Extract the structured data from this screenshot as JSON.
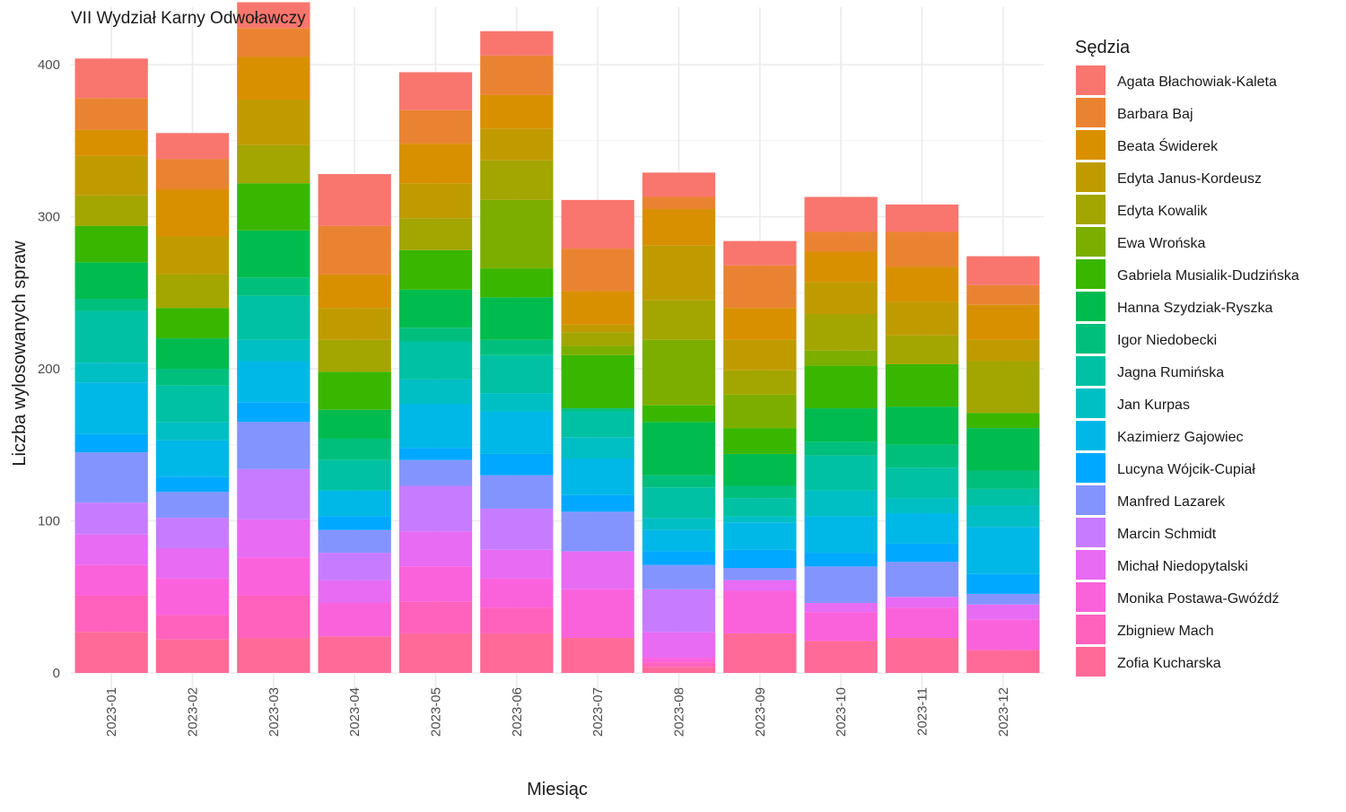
{
  "chart_data": {
    "type": "bar",
    "stacked": true,
    "title": "VII Wydział Karny Odwoławczy",
    "xlabel": "Miesiąc",
    "ylabel": "Liczba wylosowanych spraw",
    "ylim": [
      0,
      420
    ],
    "yticks": [
      0,
      100,
      200,
      300,
      400
    ],
    "grid": true,
    "legend_title": "Sędzia",
    "legend_position": "right",
    "categories": [
      "2023-01",
      "2023-02",
      "2023-03",
      "2023-04",
      "2023-05",
      "2023-06",
      "2023-07",
      "2023-08",
      "2023-09",
      "2023-10",
      "2023-11",
      "2023-12"
    ],
    "series": [
      {
        "name": "Agata Błachowiak-Kaleta",
        "color": "#F8766D",
        "values": [
          26,
          17,
          17,
          34,
          25,
          16,
          32,
          16,
          16,
          23,
          18,
          19
        ]
      },
      {
        "name": "Barbara Baj",
        "color": "#EA8331",
        "values": [
          21,
          20,
          19,
          32,
          22,
          26,
          28,
          8,
          28,
          13,
          23,
          13
        ]
      },
      {
        "name": "Beata Świderek",
        "color": "#D89000",
        "values": [
          17,
          31,
          28,
          22,
          26,
          22,
          22,
          24,
          21,
          20,
          23,
          23
        ]
      },
      {
        "name": "Edyta Janus-Kordeusz",
        "color": "#C09B00",
        "values": [
          26,
          25,
          30,
          21,
          23,
          21,
          5,
          36,
          20,
          21,
          22,
          14
        ]
      },
      {
        "name": "Edyta Kowalik",
        "color": "#A3A500",
        "values": [
          20,
          22,
          25,
          21,
          21,
          26,
          9,
          26,
          16,
          24,
          19,
          34
        ]
      },
      {
        "name": "Ewa Wrońska",
        "color": "#7CAE00",
        "values": [
          0,
          0,
          0,
          0,
          0,
          45,
          6,
          43,
          22,
          10,
          0,
          0
        ]
      },
      {
        "name": "Gabriela Musialik-Dudzińska",
        "color": "#39B600",
        "values": [
          24,
          20,
          31,
          25,
          26,
          19,
          35,
          11,
          17,
          28,
          28,
          10
        ]
      },
      {
        "name": "Hanna Szydziak-Ryszka",
        "color": "#00BB4E",
        "values": [
          24,
          20,
          31,
          19,
          25,
          28,
          0,
          35,
          21,
          22,
          25,
          28
        ]
      },
      {
        "name": "Igor Niedobecki",
        "color": "#00BF7D",
        "values": [
          8,
          11,
          12,
          14,
          9,
          10,
          2,
          8,
          8,
          9,
          15,
          12
        ]
      },
      {
        "name": "Jagna Rumińska",
        "color": "#00C1A3",
        "values": [
          34,
          24,
          29,
          20,
          25,
          25,
          17,
          20,
          12,
          23,
          20,
          11
        ]
      },
      {
        "name": "Jan Kurpas",
        "color": "#00BFC4",
        "values": [
          13,
          12,
          14,
          0,
          16,
          12,
          14,
          8,
          4,
          17,
          10,
          14
        ]
      },
      {
        "name": "Kazimierz Gajowiec",
        "color": "#00B8E7",
        "values": [
          34,
          24,
          27,
          17,
          29,
          28,
          24,
          14,
          18,
          24,
          20,
          31
        ]
      },
      {
        "name": "Lucyna Wójcik-Cupiał",
        "color": "#00A9FF",
        "values": [
          12,
          10,
          13,
          9,
          8,
          14,
          11,
          9,
          12,
          9,
          12,
          13
        ]
      },
      {
        "name": "Manfred Lazarek",
        "color": "#8494FF",
        "values": [
          33,
          17,
          31,
          15,
          17,
          22,
          26,
          16,
          8,
          24,
          23,
          7
        ]
      },
      {
        "name": "Marcin Schmidt",
        "color": "#C77CFF",
        "values": [
          21,
          20,
          33,
          18,
          30,
          27,
          0,
          28,
          0,
          0,
          0,
          0
        ]
      },
      {
        "name": "Michał Niedopytalski",
        "color": "#E76BF3",
        "values": [
          20,
          20,
          25,
          15,
          23,
          19,
          25,
          17,
          7,
          6,
          7,
          10
        ]
      },
      {
        "name": "Monika Postawa-Gwóźdź",
        "color": "#FA62DB",
        "values": [
          20,
          24,
          25,
          22,
          23,
          19,
          32,
          3,
          28,
          19,
          20,
          20
        ]
      },
      {
        "name": "Zbigniew Mach",
        "color": "#FF62BC",
        "values": [
          24,
          16,
          28,
          0,
          21,
          17,
          0,
          3,
          0,
          0,
          0,
          0
        ]
      },
      {
        "name": "Zofia Kucharska",
        "color": "#FF6A98",
        "values": [
          27,
          22,
          23,
          24,
          26,
          26,
          23,
          4,
          26,
          21,
          23,
          15
        ]
      }
    ]
  }
}
